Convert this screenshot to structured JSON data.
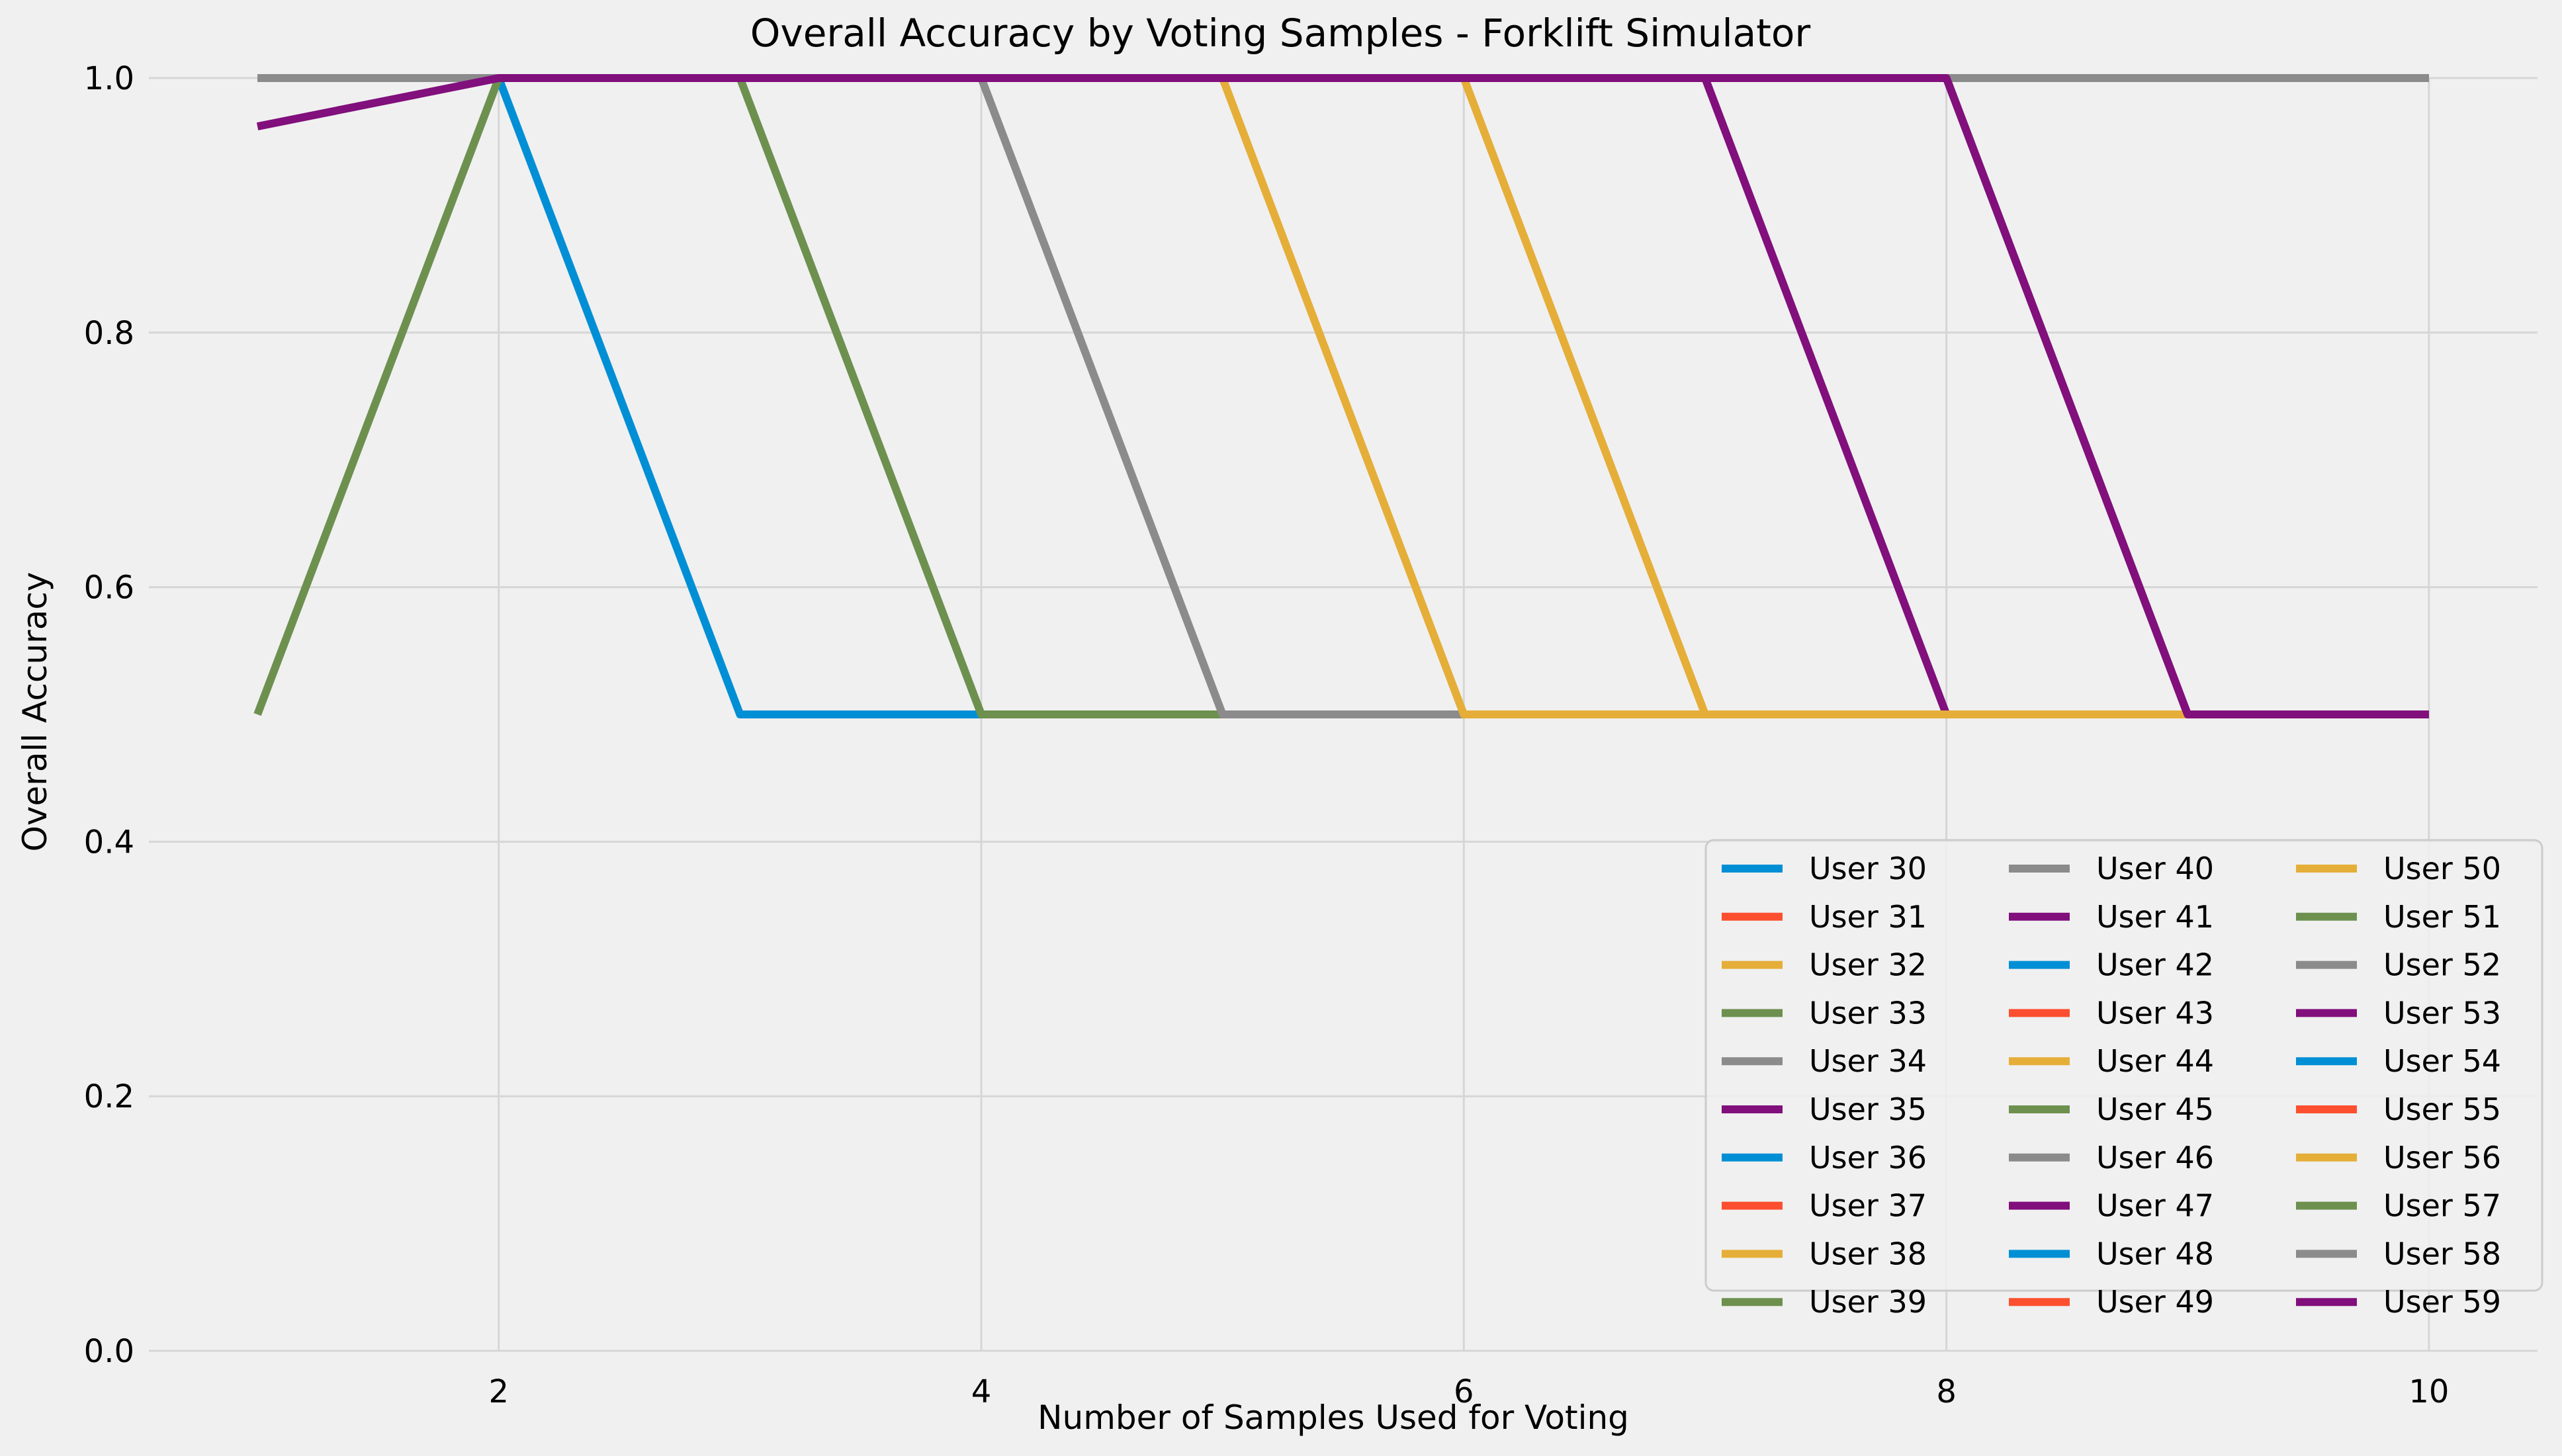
{
  "chart_data": {
    "type": "line",
    "title": "Overall Accuracy by Voting Samples - Forklift Simulator",
    "xlabel": "Number of Samples Used for Voting",
    "ylabel": "Overall Accuracy",
    "xlim": [
      0.55,
      10.45
    ],
    "ylim": [
      0.0,
      1.0
    ],
    "xticks": [
      2,
      4,
      6,
      8,
      10
    ],
    "xtick_labels": [
      "2",
      "4",
      "6",
      "8",
      "10"
    ],
    "yticks": [
      0.0,
      0.2,
      0.4,
      0.6,
      0.8,
      1.0
    ],
    "ytick_labels": [
      "0.0",
      "0.2",
      "0.4",
      "0.6",
      "0.8",
      "1.0"
    ],
    "grid": true,
    "legend_position": "lower right",
    "legend_columns": 3,
    "palette": [
      "#008fd5",
      "#fc4f30",
      "#e5ae38",
      "#6d904f",
      "#8b8b8b",
      "#810f7c"
    ],
    "series": [
      {
        "name": "User 30",
        "x": [
          1,
          2,
          3,
          4,
          5,
          6,
          7,
          8,
          9,
          10
        ],
        "y": [
          1.0,
          1.0,
          0.5,
          0.5,
          0.5,
          0.5,
          0.5,
          0.5,
          0.5,
          0.5
        ]
      },
      {
        "name": "User 31",
        "x": [
          1,
          2,
          3,
          4,
          5,
          6,
          7,
          8,
          9,
          10
        ],
        "y": [
          1.0,
          1.0,
          1.0,
          1.0,
          1.0,
          1.0,
          1.0,
          1.0,
          1.0,
          1.0
        ]
      },
      {
        "name": "User 32",
        "x": [
          1,
          2,
          3,
          4,
          5,
          6,
          7,
          8,
          9,
          10
        ],
        "y": [
          1.0,
          1.0,
          1.0,
          1.0,
          1.0,
          1.0,
          1.0,
          1.0,
          1.0,
          1.0
        ]
      },
      {
        "name": "User 33",
        "x": [
          1,
          2,
          3,
          4,
          5,
          6,
          7,
          8,
          9,
          10
        ],
        "y": [
          1.0,
          1.0,
          1.0,
          1.0,
          1.0,
          1.0,
          1.0,
          1.0,
          1.0,
          1.0
        ]
      },
      {
        "name": "User 34",
        "x": [
          1,
          2,
          3,
          4,
          5,
          6,
          7,
          8,
          9,
          10
        ],
        "y": [
          1.0,
          1.0,
          1.0,
          1.0,
          1.0,
          1.0,
          1.0,
          1.0,
          1.0,
          1.0
        ]
      },
      {
        "name": "User 35",
        "x": [
          1,
          2,
          3,
          4,
          5,
          6,
          7,
          8,
          9,
          10
        ],
        "y": [
          1.0,
          1.0,
          1.0,
          1.0,
          1.0,
          1.0,
          1.0,
          1.0,
          1.0,
          1.0
        ]
      },
      {
        "name": "User 36",
        "x": [
          1,
          2,
          3,
          4,
          5,
          6,
          7,
          8,
          9,
          10
        ],
        "y": [
          1.0,
          1.0,
          1.0,
          1.0,
          1.0,
          1.0,
          1.0,
          1.0,
          1.0,
          1.0
        ]
      },
      {
        "name": "User 37",
        "x": [
          1,
          2,
          3,
          4,
          5,
          6,
          7,
          8,
          9,
          10
        ],
        "y": [
          1.0,
          1.0,
          1.0,
          1.0,
          1.0,
          1.0,
          1.0,
          1.0,
          1.0,
          1.0
        ]
      },
      {
        "name": "User 38",
        "x": [
          1,
          2,
          3,
          4,
          5,
          6,
          7,
          8,
          9,
          10
        ],
        "y": [
          1.0,
          1.0,
          1.0,
          1.0,
          1.0,
          1.0,
          1.0,
          1.0,
          1.0,
          1.0
        ]
      },
      {
        "name": "User 39",
        "x": [
          1,
          2,
          3,
          4,
          5,
          6,
          7,
          8,
          9,
          10
        ],
        "y": [
          1.0,
          1.0,
          1.0,
          0.5,
          0.5,
          0.5,
          0.5,
          0.5,
          0.5,
          0.5
        ]
      },
      {
        "name": "User 40",
        "x": [
          1,
          2,
          3,
          4,
          5,
          6,
          7,
          8,
          9,
          10
        ],
        "y": [
          1.0,
          1.0,
          1.0,
          1.0,
          1.0,
          1.0,
          1.0,
          1.0,
          1.0,
          1.0
        ]
      },
      {
        "name": "User 41",
        "x": [
          1,
          2,
          3,
          4,
          5,
          6,
          7,
          8,
          9,
          10
        ],
        "y": [
          1.0,
          1.0,
          1.0,
          1.0,
          1.0,
          1.0,
          1.0,
          1.0,
          1.0,
          1.0
        ]
      },
      {
        "name": "User 42",
        "x": [
          1,
          2,
          3,
          4,
          5,
          6,
          7,
          8,
          9,
          10
        ],
        "y": [
          1.0,
          1.0,
          1.0,
          1.0,
          1.0,
          1.0,
          1.0,
          1.0,
          1.0,
          1.0
        ]
      },
      {
        "name": "User 43",
        "x": [
          1,
          2,
          3,
          4,
          5,
          6,
          7,
          8,
          9,
          10
        ],
        "y": [
          1.0,
          1.0,
          1.0,
          1.0,
          1.0,
          1.0,
          1.0,
          1.0,
          1.0,
          1.0
        ]
      },
      {
        "name": "User 44",
        "x": [
          1,
          2,
          3,
          4,
          5,
          6,
          7,
          8,
          9,
          10
        ],
        "y": [
          1.0,
          1.0,
          1.0,
          1.0,
          1.0,
          1.0,
          1.0,
          1.0,
          1.0,
          1.0
        ]
      },
      {
        "name": "User 45",
        "x": [
          1,
          2,
          3,
          4,
          5,
          6,
          7,
          8,
          9,
          10
        ],
        "y": [
          1.0,
          1.0,
          1.0,
          1.0,
          1.0,
          1.0,
          1.0,
          1.0,
          1.0,
          1.0
        ]
      },
      {
        "name": "User 46",
        "x": [
          1,
          2,
          3,
          4,
          5,
          6,
          7,
          8,
          9,
          10
        ],
        "y": [
          1.0,
          1.0,
          1.0,
          1.0,
          0.5,
          0.5,
          0.5,
          0.5,
          0.5,
          0.5
        ]
      },
      {
        "name": "User 47",
        "x": [
          1,
          2,
          3,
          4,
          5,
          6,
          7,
          8,
          9,
          10
        ],
        "y": [
          1.0,
          1.0,
          1.0,
          1.0,
          1.0,
          1.0,
          1.0,
          0.5,
          0.5,
          0.5
        ]
      },
      {
        "name": "User 48",
        "x": [
          1,
          2,
          3,
          4,
          5,
          6,
          7,
          8,
          9,
          10
        ],
        "y": [
          1.0,
          1.0,
          1.0,
          1.0,
          1.0,
          1.0,
          1.0,
          1.0,
          1.0,
          1.0
        ]
      },
      {
        "name": "User 49",
        "x": [
          1,
          2,
          3,
          4,
          5,
          6,
          7,
          8,
          9,
          10
        ],
        "y": [
          1.0,
          1.0,
          1.0,
          1.0,
          1.0,
          1.0,
          1.0,
          1.0,
          1.0,
          1.0
        ]
      },
      {
        "name": "User 50",
        "x": [
          1,
          2,
          3,
          4,
          5,
          6,
          7,
          8,
          9,
          10
        ],
        "y": [
          1.0,
          1.0,
          1.0,
          1.0,
          1.0,
          1.0,
          0.5,
          0.5,
          0.5,
          0.5
        ]
      },
      {
        "name": "User 51",
        "x": [
          1,
          2,
          3,
          4,
          5,
          6,
          7,
          8,
          9,
          10
        ],
        "y": [
          0.5,
          1.0,
          1.0,
          1.0,
          1.0,
          1.0,
          1.0,
          1.0,
          1.0,
          1.0
        ]
      },
      {
        "name": "User 52",
        "x": [
          1,
          2,
          3,
          4,
          5,
          6,
          7,
          8,
          9,
          10
        ],
        "y": [
          1.0,
          1.0,
          1.0,
          1.0,
          1.0,
          1.0,
          1.0,
          1.0,
          0.5,
          0.5
        ]
      },
      {
        "name": "User 53",
        "x": [
          1,
          2,
          3,
          4,
          5,
          6,
          7,
          8,
          9,
          10
        ],
        "y": [
          1.0,
          1.0,
          1.0,
          1.0,
          1.0,
          1.0,
          1.0,
          1.0,
          0.5,
          0.5
        ]
      },
      {
        "name": "User 54",
        "x": [
          1,
          2,
          3,
          4,
          5,
          6,
          7,
          8,
          9,
          10
        ],
        "y": [
          1.0,
          1.0,
          1.0,
          1.0,
          1.0,
          1.0,
          1.0,
          1.0,
          1.0,
          1.0
        ]
      },
      {
        "name": "User 55",
        "x": [
          1,
          2,
          3,
          4,
          5,
          6,
          7,
          8,
          9,
          10
        ],
        "y": [
          1.0,
          1.0,
          1.0,
          1.0,
          1.0,
          1.0,
          1.0,
          1.0,
          1.0,
          1.0
        ]
      },
      {
        "name": "User 56",
        "x": [
          1,
          2,
          3,
          4,
          5,
          6,
          7,
          8,
          9,
          10
        ],
        "y": [
          1.0,
          1.0,
          1.0,
          1.0,
          1.0,
          0.5,
          0.5,
          0.5,
          0.5,
          0.5
        ]
      },
      {
        "name": "User 57",
        "x": [
          1,
          2,
          3,
          4,
          5,
          6,
          7,
          8,
          9,
          10
        ],
        "y": [
          1.0,
          1.0,
          1.0,
          1.0,
          1.0,
          1.0,
          1.0,
          1.0,
          1.0,
          1.0
        ]
      },
      {
        "name": "User 58",
        "x": [
          1,
          2,
          3,
          4,
          5,
          6,
          7,
          8,
          9,
          10
        ],
        "y": [
          1.0,
          1.0,
          1.0,
          1.0,
          1.0,
          1.0,
          1.0,
          1.0,
          1.0,
          1.0
        ]
      },
      {
        "name": "User 59",
        "x": [
          1,
          2,
          3,
          4,
          5,
          6,
          7,
          8,
          9,
          10
        ],
        "y": [
          0.962,
          1.0,
          1.0,
          1.0,
          1.0,
          1.0,
          1.0,
          1.0,
          0.5,
          0.5
        ]
      }
    ]
  }
}
